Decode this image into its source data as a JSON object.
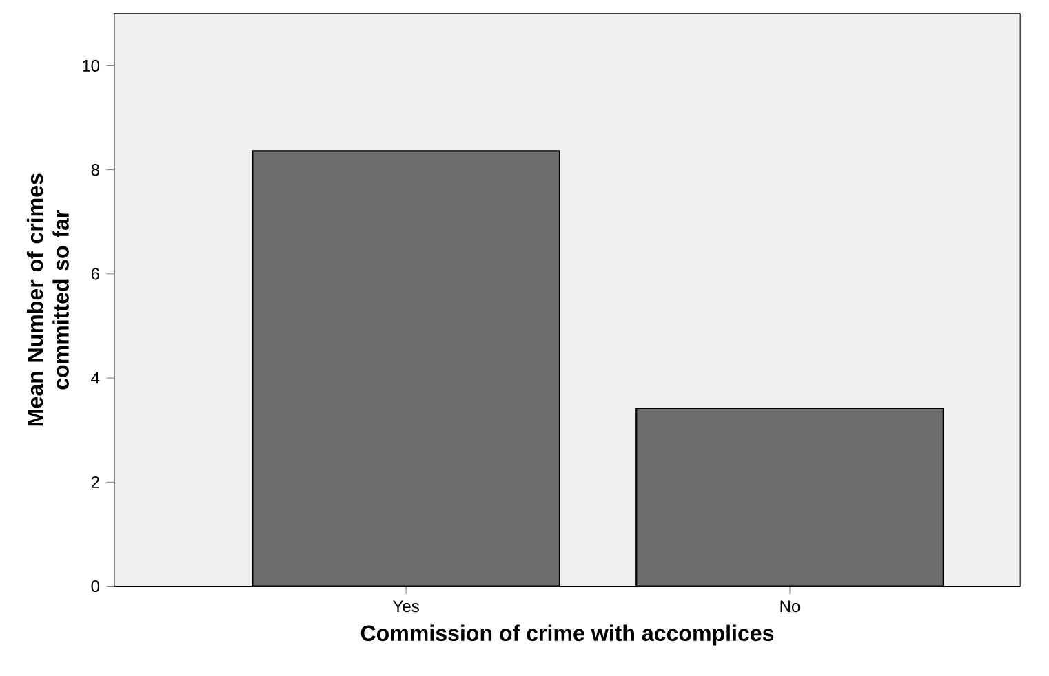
{
  "chart_data": {
    "type": "bar",
    "xlabel": "Commission of crime with accomplices",
    "ylabel": "Mean Number of crimes committed so far",
    "categories": [
      "Yes",
      "No"
    ],
    "values": [
      8.36,
      3.42
    ],
    "color": "#6e6e6e",
    "ylim": [
      0,
      11
    ],
    "yticks": [
      0,
      2,
      4,
      6,
      8,
      10
    ],
    "grid": false
  }
}
